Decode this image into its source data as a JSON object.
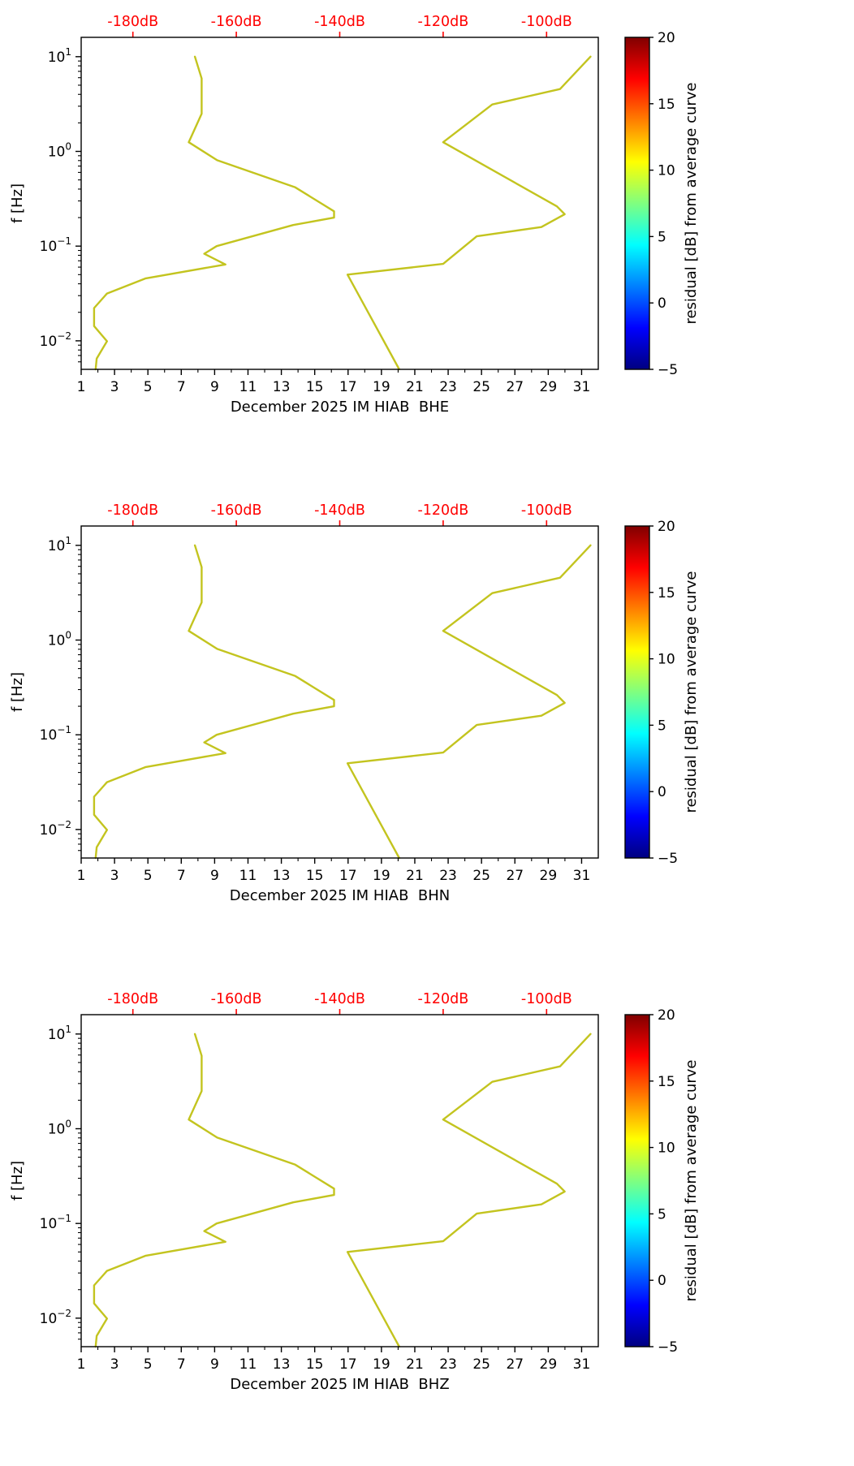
{
  "figure": {
    "background": "#ffffff",
    "text_color": "#000000"
  },
  "chart_data": {
    "type": "line",
    "description": "Three stacked PPSD spectrogram frames (no residual data plotted) showing Peterson low/high noise model curves versus the top dB axis, frequency on log y-axis, day of month on bottom x-axis",
    "panels": [
      {
        "title": "December 2025 IM HIAB  BHE"
      },
      {
        "title": "December 2025 IM HIAB  BHN"
      },
      {
        "title": "December 2025 IM HIAB  BHZ"
      }
    ],
    "y_axis": {
      "label": "f [Hz]",
      "scale": "log",
      "lim": [
        0.005,
        16
      ],
      "major_ticks": [
        {
          "value": 10,
          "mantissa": "10",
          "exponent": "1"
        },
        {
          "value": 1,
          "mantissa": "10",
          "exponent": "0"
        },
        {
          "value": 0.1,
          "mantissa": "10",
          "exponent": "−1"
        },
        {
          "value": 0.01,
          "mantissa": "10",
          "exponent": "−2"
        }
      ]
    },
    "x_bottom_axis": {
      "lim": [
        1,
        32
      ],
      "tick_values": [
        1,
        3,
        5,
        7,
        9,
        11,
        13,
        15,
        17,
        19,
        21,
        23,
        25,
        27,
        29,
        31
      ],
      "tick_labels": [
        "1",
        "3",
        "5",
        "7",
        "9",
        "11",
        "13",
        "15",
        "17",
        "19",
        "21",
        "23",
        "25",
        "27",
        "29",
        "31"
      ],
      "minor_tick_values": [
        2,
        4,
        6,
        8,
        10,
        12,
        14,
        16,
        18,
        20,
        22,
        24,
        26,
        28,
        30
      ]
    },
    "x_top_axis": {
      "unit": "dB",
      "lim": [
        -190,
        -90
      ],
      "tick_values": [
        -180,
        -160,
        -140,
        -120,
        -100
      ],
      "tick_labels": [
        "-180dB",
        "-160dB",
        "-140dB",
        "-120dB",
        "-100dB"
      ],
      "color": "#ff0000"
    },
    "series": [
      {
        "name": "low-noise-model-curve",
        "color": "#c3c41f",
        "points_db_hz": [
          [
            -168.0,
            10.0
          ],
          [
            -166.7,
            5.88
          ],
          [
            -166.7,
            2.5
          ],
          [
            -169.2,
            1.25
          ],
          [
            -163.7,
            0.806
          ],
          [
            -148.6,
            0.417
          ],
          [
            -141.1,
            0.233
          ],
          [
            -141.1,
            0.2
          ],
          [
            -149.0,
            0.167
          ],
          [
            -163.8,
            0.1
          ],
          [
            -166.2,
            0.083
          ],
          [
            -162.1,
            0.064
          ],
          [
            -177.5,
            0.0457
          ],
          [
            -185.0,
            0.0316
          ],
          [
            -187.5,
            0.0222
          ],
          [
            -187.5,
            0.0143
          ],
          [
            -185.0,
            0.0099
          ],
          [
            -187.0,
            0.0065
          ],
          [
            -187.2,
            0.005
          ]
        ]
      },
      {
        "name": "high-noise-model-curve",
        "color": "#c3c41f",
        "points_db_hz": [
          [
            -91.5,
            10.0
          ],
          [
            -97.4,
            4.55
          ],
          [
            -110.5,
            3.13
          ],
          [
            -120.0,
            1.25
          ],
          [
            -98.0,
            0.263
          ],
          [
            -96.5,
            0.217
          ],
          [
            -101.0,
            0.159
          ],
          [
            -113.5,
            0.127
          ],
          [
            -120.0,
            0.0649
          ],
          [
            -138.5,
            0.05
          ],
          [
            -128.5,
            0.005
          ]
        ]
      }
    ],
    "colorbar": {
      "label": "residual [dB] from average curve",
      "vmin": -5,
      "vmax": 20,
      "tick_values": [
        20,
        15,
        10,
        5,
        0,
        -5
      ],
      "tick_labels": [
        "20",
        "15",
        "10",
        "5",
        "0",
        "−5"
      ],
      "gradient_stops": [
        [
          0,
          "#000080"
        ],
        [
          0.125,
          "#0000ff"
        ],
        [
          0.375,
          "#00ffff"
        ],
        [
          0.625,
          "#ffff00"
        ],
        [
          0.875,
          "#ff0000"
        ],
        [
          1,
          "#800000"
        ]
      ]
    }
  }
}
